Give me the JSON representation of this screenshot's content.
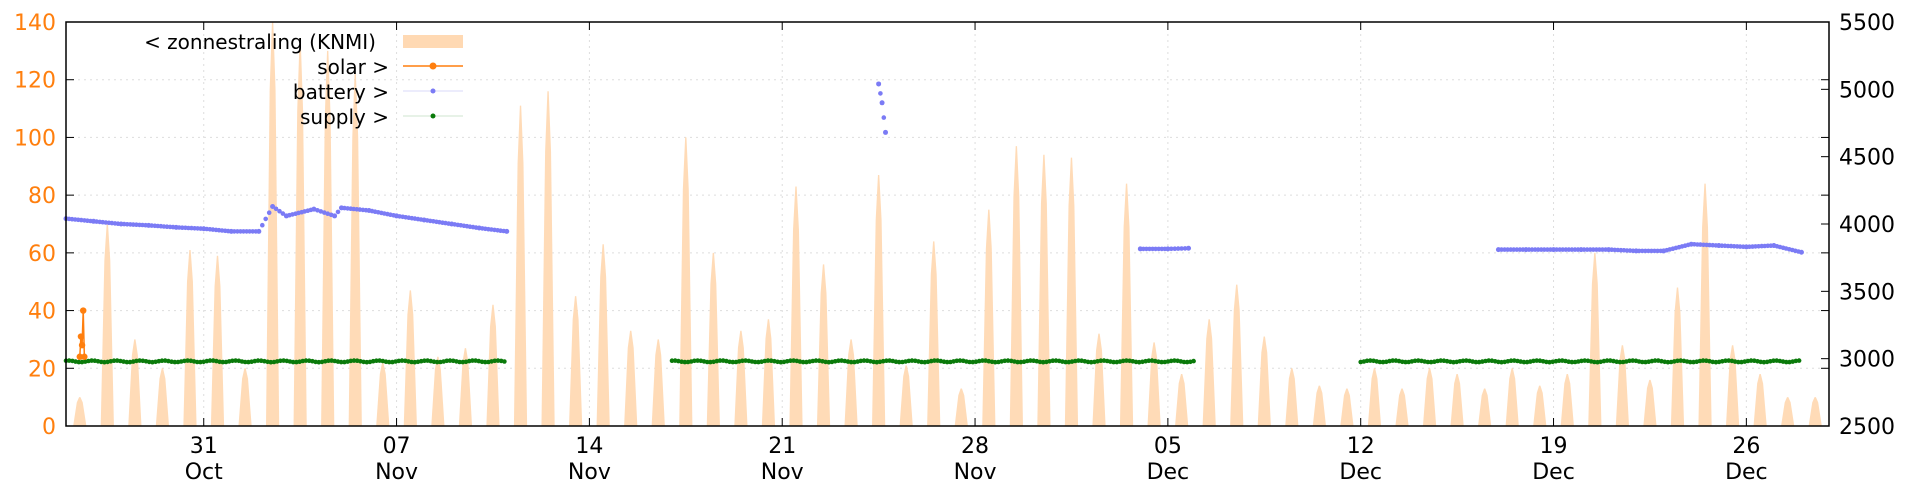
{
  "chart_data": {
    "type": "area",
    "x_range": [
      "2020-10-26",
      "2020-12-29"
    ],
    "y_left": {
      "range": [
        0,
        140
      ],
      "ticks": [
        "0",
        "20",
        "40",
        "60",
        "80",
        "100",
        "120",
        "140"
      ]
    },
    "y_right": {
      "range": [
        2500,
        5500
      ],
      "ticks": [
        "2500",
        "3000",
        "3500",
        "4000",
        "4500",
        "5000",
        "5500"
      ]
    },
    "x_ticks": [
      {
        "date": "2020-10-31",
        "day": "31",
        "month": "Oct"
      },
      {
        "date": "2020-11-07",
        "day": "07",
        "month": "Nov"
      },
      {
        "date": "2020-11-14",
        "day": "14",
        "month": "Nov"
      },
      {
        "date": "2020-11-21",
        "day": "21",
        "month": "Nov"
      },
      {
        "date": "2020-11-28",
        "day": "28",
        "month": "Nov"
      },
      {
        "date": "2020-12-05",
        "day": "05",
        "month": "Dec"
      },
      {
        "date": "2020-12-12",
        "day": "12",
        "month": "Dec"
      },
      {
        "date": "2020-12-19",
        "day": "19",
        "month": "Dec"
      },
      {
        "date": "2020-12-26",
        "day": "26",
        "month": "Dec"
      }
    ],
    "grid": true,
    "legend_position": "top-left",
    "legend": [
      {
        "label": "< zonnestraling (KNMI)",
        "style": "bar"
      },
      {
        "label": "solar >",
        "style": "line-points"
      },
      {
        "label": "battery >",
        "style": "points"
      },
      {
        "label": "supply >",
        "style": "points"
      }
    ],
    "colors": {
      "zonnestraling": "#ffd9b3",
      "solar": "#ff7f0e",
      "battery": "#7b7bf5",
      "supply": "#0a7a0a",
      "left_axis": "#ff7f0e"
    },
    "zonnestraling": {
      "axis": "left",
      "daily_peaks": [
        [
          "2020-10-26",
          10
        ],
        [
          "2020-10-27",
          70
        ],
        [
          "2020-10-28",
          30
        ],
        [
          "2020-10-29",
          20
        ],
        [
          "2020-10-30",
          61
        ],
        [
          "2020-10-31",
          59
        ],
        [
          "2020-11-01",
          20
        ],
        [
          "2020-11-02",
          142
        ],
        [
          "2020-11-03",
          133
        ],
        [
          "2020-11-04",
          130
        ],
        [
          "2020-11-05",
          122
        ],
        [
          "2020-11-06",
          22
        ],
        [
          "2020-11-07",
          47
        ],
        [
          "2020-11-08",
          24
        ],
        [
          "2020-11-09",
          27
        ],
        [
          "2020-11-10",
          42
        ],
        [
          "2020-11-11",
          111
        ],
        [
          "2020-11-12",
          116
        ],
        [
          "2020-11-13",
          45
        ],
        [
          "2020-11-14",
          63
        ],
        [
          "2020-11-15",
          33
        ],
        [
          "2020-11-16",
          30
        ],
        [
          "2020-11-17",
          100
        ],
        [
          "2020-11-18",
          60
        ],
        [
          "2020-11-19",
          33
        ],
        [
          "2020-11-20",
          37
        ],
        [
          "2020-11-21",
          83
        ],
        [
          "2020-11-22",
          56
        ],
        [
          "2020-11-23",
          30
        ],
        [
          "2020-11-24",
          87
        ],
        [
          "2020-11-25",
          21
        ],
        [
          "2020-11-26",
          64
        ],
        [
          "2020-11-27",
          13
        ],
        [
          "2020-11-28",
          75
        ],
        [
          "2020-11-29",
          97
        ],
        [
          "2020-11-30",
          94
        ],
        [
          "2020-12-01",
          93
        ],
        [
          "2020-12-02",
          32
        ],
        [
          "2020-12-03",
          84
        ],
        [
          "2020-12-04",
          29
        ],
        [
          "2020-12-05",
          18
        ],
        [
          "2020-12-06",
          37
        ],
        [
          "2020-12-07",
          49
        ],
        [
          "2020-12-08",
          31
        ],
        [
          "2020-12-09",
          20
        ],
        [
          "2020-12-10",
          14
        ],
        [
          "2020-12-11",
          13
        ],
        [
          "2020-12-12",
          20
        ],
        [
          "2020-12-13",
          13
        ],
        [
          "2020-12-14",
          20
        ],
        [
          "2020-12-15",
          18
        ],
        [
          "2020-12-16",
          13
        ],
        [
          "2020-12-17",
          20
        ],
        [
          "2020-12-18",
          14
        ],
        [
          "2020-12-19",
          18
        ],
        [
          "2020-12-20",
          60
        ],
        [
          "2020-12-21",
          28
        ],
        [
          "2020-12-22",
          16
        ],
        [
          "2020-12-23",
          48
        ],
        [
          "2020-12-24",
          84
        ],
        [
          "2020-12-25",
          28
        ],
        [
          "2020-12-26",
          18
        ],
        [
          "2020-12-27",
          10
        ],
        [
          "2020-12-28",
          10
        ]
      ]
    },
    "solar": {
      "axis": "left",
      "points": [
        [
          "2020-10-26 12:00",
          24
        ],
        [
          "2020-10-26 13:00",
          31
        ],
        [
          "2020-10-26 14:00",
          28
        ],
        [
          "2020-10-26 15:00",
          40
        ],
        [
          "2020-10-26 16:00",
          24
        ]
      ]
    },
    "battery": {
      "axis": "right",
      "points": [
        [
          "2020-10-26",
          4040
        ],
        [
          "2020-10-27",
          4020
        ],
        [
          "2020-10-28",
          4000
        ],
        [
          "2020-10-29",
          3990
        ],
        [
          "2020-10-30",
          3975
        ],
        [
          "2020-10-31",
          3965
        ],
        [
          "2020-11-01",
          3945
        ],
        [
          "2020-11-02",
          3945
        ],
        [
          "2020-11-02 12:00",
          4130
        ],
        [
          "2020-11-03",
          4060
        ],
        [
          "2020-11-04",
          4110
        ],
        [
          "2020-11-04 18:00",
          4060
        ],
        [
          "2020-11-05",
          4120
        ],
        [
          "2020-11-06",
          4100
        ],
        [
          "2020-11-07",
          4060
        ],
        [
          "2020-11-08",
          4030
        ],
        [
          "2020-11-09",
          4000
        ],
        [
          "2020-11-10",
          3970
        ],
        [
          "2020-11-11",
          3945
        ],
        [
          "2020-11-24 12:00",
          5040
        ],
        [
          "2020-11-24 15:00",
          4900
        ],
        [
          "2020-11-24 18:00",
          4680
        ],
        [
          "2020-12-04",
          3815
        ],
        [
          "2020-12-05",
          3815
        ],
        [
          "2020-12-05 18:00",
          3820
        ],
        [
          "2020-12-17",
          3810
        ],
        [
          "2020-12-18",
          3810
        ],
        [
          "2020-12-19",
          3810
        ],
        [
          "2020-12-20",
          3810
        ],
        [
          "2020-12-21",
          3810
        ],
        [
          "2020-12-22",
          3800
        ],
        [
          "2020-12-23",
          3800
        ],
        [
          "2020-12-24",
          3850
        ],
        [
          "2020-12-25",
          3840
        ],
        [
          "2020-12-26",
          3830
        ],
        [
          "2020-12-27",
          3840
        ],
        [
          "2020-12-28",
          3790
        ]
      ]
    },
    "supply": {
      "axis": "right",
      "level": 2980,
      "segments": [
        [
          "2020-10-26",
          "2020-11-11"
        ],
        [
          "2020-11-17",
          "2020-12-06"
        ],
        [
          "2020-12-12",
          "2020-12-28"
        ]
      ]
    }
  }
}
